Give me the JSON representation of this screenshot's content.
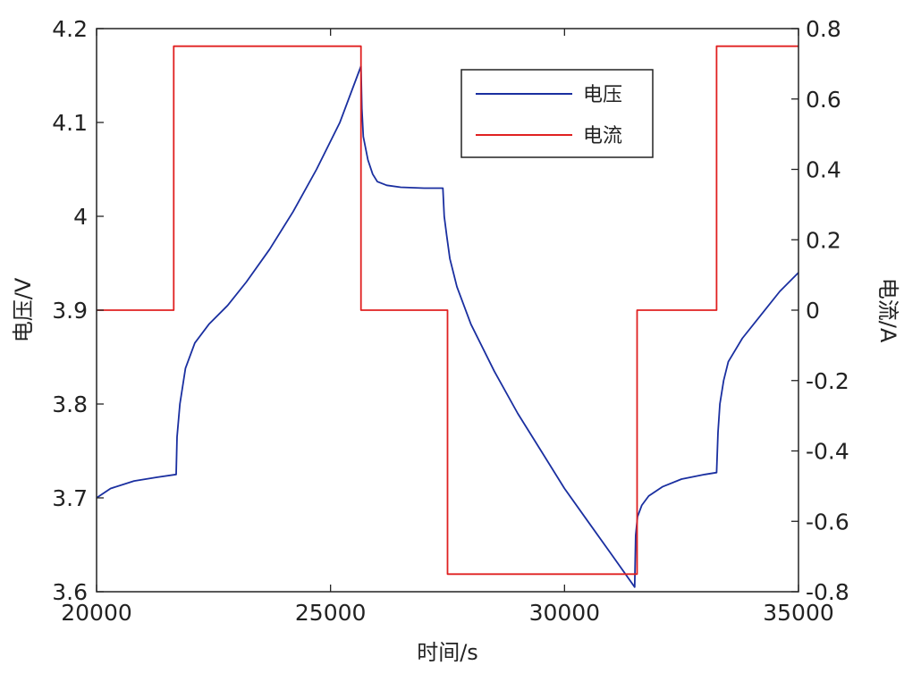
{
  "chart_data": {
    "type": "line",
    "xlabel": "时间/s",
    "ylabel_left": "电压/V",
    "ylabel_right": "电流/A",
    "xlim": [
      20000,
      35000
    ],
    "ylim_left": [
      3.6,
      4.2
    ],
    "ylim_right": [
      -0.8,
      0.8
    ],
    "x_ticks": [
      20000,
      25000,
      30000,
      35000
    ],
    "y_left_ticks": [
      3.6,
      3.7,
      3.8,
      3.9,
      4.0,
      4.1,
      4.2
    ],
    "y_right_ticks": [
      -0.8,
      -0.6,
      -0.4,
      -0.2,
      0,
      0.2,
      0.4,
      0.6,
      0.8
    ],
    "x_tick_labels": [
      "20000",
      "25000",
      "30000",
      "35000"
    ],
    "y_left_tick_labels": [
      "3.6",
      "3.7",
      "3.8",
      "3.9",
      "4",
      "4.1",
      "4.2"
    ],
    "y_right_tick_labels": [
      "-0.8",
      "-0.6",
      "-0.4",
      "-0.2",
      "0",
      "0.2",
      "0.4",
      "0.6",
      "0.8"
    ],
    "grid": false,
    "legend_position": "top-right",
    "series": [
      {
        "name": "电压",
        "axis": "left",
        "color": "#1a2fa0",
        "x": [
          20000,
          20300,
          20800,
          21300,
          21700,
          21720,
          21780,
          21900,
          22100,
          22400,
          22800,
          23200,
          23700,
          24200,
          24700,
          25200,
          25650,
          25670,
          25700,
          25800,
          25900,
          26000,
          26200,
          26500,
          27000,
          27400,
          27430,
          27480,
          27550,
          27700,
          28000,
          28500,
          29000,
          29500,
          30000,
          30500,
          31000,
          31500,
          31520,
          31560,
          31650,
          31800,
          32100,
          32500,
          33000,
          33250,
          33280,
          33320,
          33400,
          33500,
          33800,
          34200,
          34600,
          35000
        ],
        "y": [
          3.7,
          3.71,
          3.718,
          3.722,
          3.725,
          3.765,
          3.8,
          3.838,
          3.865,
          3.885,
          3.905,
          3.93,
          3.965,
          4.005,
          4.05,
          4.1,
          4.16,
          4.115,
          4.085,
          4.06,
          4.045,
          4.037,
          4.033,
          4.031,
          4.03,
          4.03,
          4.0,
          3.98,
          3.955,
          3.925,
          3.885,
          3.835,
          3.79,
          3.75,
          3.71,
          3.675,
          3.64,
          3.605,
          3.66,
          3.68,
          3.692,
          3.702,
          3.712,
          3.72,
          3.725,
          3.727,
          3.77,
          3.8,
          3.825,
          3.845,
          3.87,
          3.895,
          3.92,
          3.94
        ]
      },
      {
        "name": "电流",
        "axis": "right",
        "color": "#e02020",
        "x": [
          20000,
          21650,
          21650,
          25650,
          25650,
          27500,
          27500,
          31550,
          31550,
          33250,
          33250,
          35000
        ],
        "y": [
          0,
          0,
          0.75,
          0.75,
          0,
          0,
          -0.75,
          -0.75,
          0,
          0,
          0.75,
          0.75
        ]
      }
    ]
  }
}
